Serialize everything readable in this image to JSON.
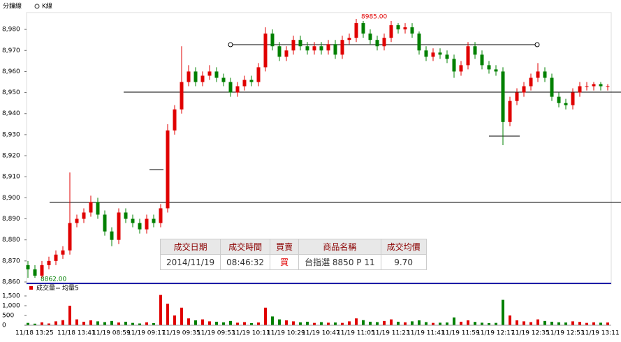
{
  "header": {
    "period": "分鐘線",
    "kline": "K線"
  },
  "chart_data": [
    {
      "type": "candlestick",
      "up_color": "#e00000",
      "down_color": "#008000",
      "categories": [
        "11/18 13:25",
        null,
        null,
        null,
        null,
        null,
        "11/18 13:41",
        null,
        null,
        null,
        null,
        "11/19 08:59",
        null,
        null,
        null,
        null,
        "11/19 09:17",
        null,
        null,
        null,
        null,
        "11/19 09:35",
        null,
        null,
        null,
        null,
        "11/19 09:53",
        null,
        null,
        null,
        null,
        "11/19 10:11",
        null,
        null,
        null,
        null,
        "11/19 10:29",
        null,
        null,
        null,
        null,
        "11/19 10:47",
        null,
        null,
        null,
        null,
        "11/19 11:05",
        null,
        null,
        null,
        null,
        "11/19 11:23",
        null,
        null,
        null,
        null,
        "11/19 11:41",
        null,
        null,
        null,
        null,
        "11/19 11:59",
        null,
        null,
        null,
        null,
        "11/19 12:17",
        null,
        null,
        null,
        null,
        "11/19 12:35",
        null,
        null,
        null,
        null,
        "11/19 12:53",
        null,
        null,
        null,
        null,
        "11/19 13:11",
        null,
        null
      ],
      "open": [
        8868,
        8866,
        8863,
        8868,
        8870,
        8873,
        8875,
        8888,
        8890,
        8893,
        8898,
        8892,
        8884,
        8880,
        8893,
        8890,
        8888,
        8885,
        8890,
        8888,
        8895,
        8932,
        8942,
        8955,
        8960,
        8955,
        8958,
        8960,
        8957,
        8955,
        8950,
        8953,
        8956,
        8955,
        8962,
        8978,
        8972,
        8967,
        8970,
        8975,
        8972,
        8970,
        8972,
        8970,
        8973,
        8968,
        8975,
        8976,
        8983,
        8978,
        8975,
        8972,
        8976,
        8982,
        8980,
        8981,
        8978,
        8970,
        8967,
        8969,
        8968,
        8966,
        8960,
        8963,
        8972,
        8968,
        8963,
        8961,
        8960,
        8936,
        8946,
        8950,
        8953,
        8957,
        8960,
        8957,
        8948,
        8945,
        8944,
        8950,
        8953,
        8953,
        8954,
        8953
      ],
      "high": [
        8870,
        8868,
        8870,
        8872,
        8875,
        8877,
        8912,
        8892,
        8895,
        8901,
        8900,
        8894,
        8886,
        8895,
        8895,
        8892,
        8890,
        8892,
        8892,
        8897,
        8935,
        8944,
        8972,
        8963,
        8962,
        8960,
        8963,
        8962,
        8959,
        8957,
        8955,
        8958,
        8958,
        8964,
        8981,
        8980,
        8974,
        8972,
        8977,
        8977,
        8974,
        8974,
        8974,
        8975,
        8975,
        8977,
        8978,
        8985,
        8984,
        8980,
        8977,
        8978,
        8984,
        8983,
        8983,
        8983,
        8979,
        8972,
        8971,
        8971,
        8970,
        8968,
        8965,
        8974,
        8974,
        8970,
        8965,
        8963,
        8962,
        8948,
        8952,
        8955,
        8959,
        8964,
        8962,
        8959,
        8950,
        8947,
        8952,
        8955,
        8955,
        8955,
        8955,
        8954
      ],
      "low": [
        8862,
        8862,
        8862,
        8866,
        8868,
        8871,
        8873,
        8886,
        8888,
        8891,
        8890,
        8882,
        8877,
        8878,
        8888,
        8886,
        8883,
        8883,
        8886,
        8886,
        8893,
        8930,
        8940,
        8953,
        8953,
        8953,
        8956,
        8955,
        8953,
        8948,
        8948,
        8951,
        8953,
        8953,
        8960,
        8970,
        8965,
        8965,
        8968,
        8970,
        8968,
        8968,
        8968,
        8968,
        8966,
        8966,
        8973,
        8974,
        8976,
        8973,
        8970,
        8970,
        8974,
        8978,
        8978,
        8976,
        8968,
        8965,
        8965,
        8966,
        8964,
        8957,
        8958,
        8961,
        8966,
        8961,
        8959,
        8958,
        8925,
        8934,
        8944,
        8948,
        8951,
        8955,
        8955,
        8946,
        8943,
        8942,
        8942,
        8948,
        8951,
        8951,
        8951,
        8951
      ],
      "close": [
        8866,
        8863,
        8868,
        8870,
        8873,
        8875,
        8888,
        8890,
        8893,
        8898,
        8892,
        8884,
        8880,
        8893,
        8890,
        8888,
        8885,
        8890,
        8888,
        8895,
        8932,
        8942,
        8955,
        8960,
        8955,
        8958,
        8960,
        8957,
        8955,
        8950,
        8953,
        8956,
        8955,
        8962,
        8978,
        8972,
        8967,
        8970,
        8975,
        8972,
        8970,
        8972,
        8970,
        8973,
        8968,
        8975,
        8976,
        8983,
        8978,
        8975,
        8972,
        8976,
        8982,
        8980,
        8981,
        8978,
        8970,
        8967,
        8969,
        8968,
        8966,
        8960,
        8963,
        8972,
        8968,
        8963,
        8961,
        8960,
        8936,
        8946,
        8950,
        8953,
        8957,
        8960,
        8957,
        8948,
        8945,
        8944,
        8950,
        8953,
        8953,
        8954,
        8953,
        8953
      ],
      "ylim": [
        8859,
        8988
      ],
      "yticks": [
        {
          "value": 8860,
          "label": "8,860"
        },
        {
          "value": 8870,
          "label": "8,870"
        },
        {
          "value": 8880,
          "label": "8,880"
        },
        {
          "value": 8890,
          "label": "8,890"
        },
        {
          "value": 8900,
          "label": "8,900"
        },
        {
          "value": 8910,
          "label": "8,910"
        },
        {
          "value": 8920,
          "label": "8,920"
        },
        {
          "value": 8930,
          "label": "8,930"
        },
        {
          "value": 8940,
          "label": "8,940"
        },
        {
          "value": 8950,
          "label": "8,950"
        },
        {
          "value": 8960,
          "label": "8,960"
        },
        {
          "value": 8970,
          "label": "8,970"
        },
        {
          "value": 8980,
          "label": "8,980"
        }
      ],
      "annotations": [
        "8985.00",
        "8862.00"
      ]
    },
    {
      "type": "volume",
      "series": [
        {
          "name": "成交量",
          "color": "#e00000",
          "values": [
            120,
            80,
            150,
            90,
            200,
            260,
            1000,
            300,
            180,
            250,
            200,
            160,
            220,
            140,
            180,
            120,
            90,
            150,
            110,
            1550,
            1100,
            500,
            900,
            350,
            250,
            300,
            200,
            180,
            150,
            220,
            130,
            160,
            110,
            140,
            900,
            450,
            300,
            250,
            200,
            150,
            180,
            120,
            160,
            130,
            140,
            120,
            200,
            350,
            260,
            180,
            160,
            220,
            300,
            180,
            150,
            200,
            250,
            160,
            120,
            130,
            140,
            400,
            180,
            250,
            170,
            130,
            110,
            120,
            1300,
            500,
            250,
            200,
            160,
            300,
            220,
            180,
            150,
            140,
            200,
            170,
            120,
            150,
            130,
            140
          ]
        },
        {
          "name": "均量5"
        }
      ],
      "ylim": [
        0,
        1700
      ],
      "yticks": [
        0,
        500,
        {
          "value": 1000,
          "label": "1,000"
        },
        {
          "value": 1500,
          "label": "1,500"
        }
      ]
    }
  ],
  "trade_table": {
    "headers": [
      "成交日期",
      "成交時間",
      "買賣",
      "商品名稱",
      "成交均價"
    ],
    "row": [
      "2014/11/19",
      "08:46:32",
      "買",
      "台指選  8850 P 11",
      "9.70"
    ]
  }
}
